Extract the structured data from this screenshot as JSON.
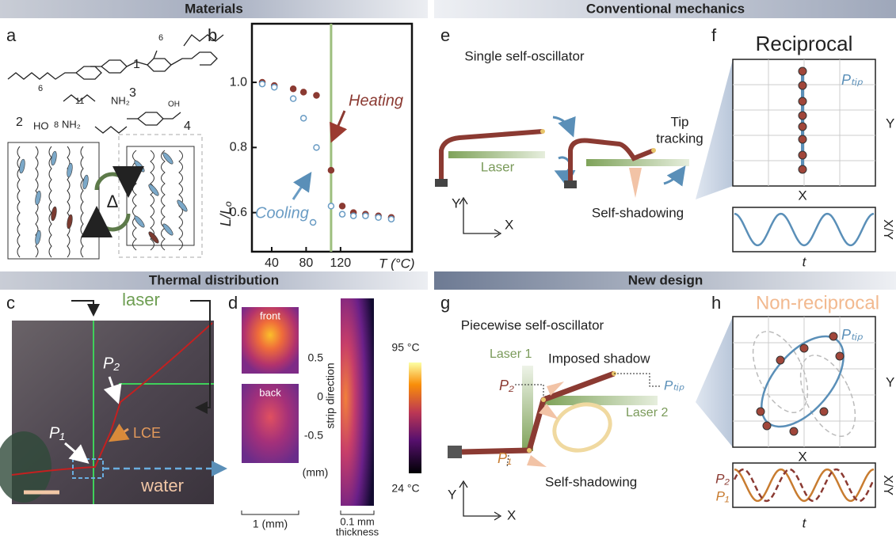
{
  "sections": {
    "materials": "Materials",
    "conventional": "Conventional mechanics",
    "thermal": "Thermal distribution",
    "new_design": "New design"
  },
  "panel_labels": [
    "a",
    "b",
    "c",
    "d",
    "e",
    "f",
    "g",
    "h"
  ],
  "panel_a": {
    "numbers": [
      "1",
      "2",
      "3",
      "4"
    ],
    "spacers": [
      "6",
      "6",
      "11",
      "8"
    ],
    "groups": [
      "NH₂",
      "HO",
      "NH₂",
      "OH"
    ],
    "delta": "Δ"
  },
  "chart_data": {
    "type": "scatter",
    "y_label": "L/Lₒ",
    "x_label": "T (°C)",
    "xlim": [
      17,
      203
    ],
    "ylim": [
      0.48,
      1.18
    ],
    "xticks": [
      40,
      80,
      120
    ],
    "yticks": [
      0.6,
      0.8,
      {
        "value": 1,
        "label": "1.0"
      }
    ],
    "vline": 109,
    "vline_color": "#9dbf7e",
    "series": [
      {
        "name": "Heating",
        "color": "#8b3a32",
        "x": [
          29,
          43,
          65,
          77,
          92,
          109,
          122,
          135,
          149,
          164,
          179
        ],
        "values": [
          1.0,
          0.99,
          0.98,
          0.97,
          0.96,
          0.73,
          0.62,
          0.6,
          0.595,
          0.59,
          0.585
        ]
      },
      {
        "name": "Cooling",
        "color": "#6a9cc4",
        "x": [
          29,
          43,
          65,
          77,
          88,
          92,
          109,
          122,
          135,
          149,
          164,
          179
        ],
        "values": [
          0.995,
          0.985,
          0.95,
          0.89,
          0.57,
          0.8,
          0.62,
          0.595,
          0.59,
          0.59,
          0.585,
          0.58
        ]
      }
    ]
  },
  "panel_c": {
    "laser": "laser",
    "p1": "P₁",
    "p2": "P₂",
    "lce": "LCE",
    "water": "water"
  },
  "panel_d": {
    "front": "front",
    "back": "back",
    "width": "1 (mm)",
    "ticks": [
      "0.5",
      "0",
      "-0.5"
    ],
    "axis": "strip direction",
    "unit": "(mm)",
    "max": "95 °C",
    "min": "24 °C",
    "thickness_value": "0.1 mm",
    "thickness": "thickness"
  },
  "panel_e": {
    "title": "Single self-oscillator",
    "laser": "Laser",
    "tip1": "Tip",
    "tip2": "tracking",
    "shadow": "Self-shadowing",
    "y": "Y",
    "x": "X"
  },
  "panel_f": {
    "title": "Reciprocal",
    "ptip": "Pₜᵢₚ",
    "y": "Y",
    "x": "X",
    "xy": "X/Y",
    "t": "t"
  },
  "panel_g": {
    "title": "Piecewise self-oscillator",
    "laser1": "Laser 1",
    "imposed": "Imposed shadow",
    "p2": "P₂",
    "ptip": "Pₜᵢₚ",
    "laser2": "Laser 2",
    "p1": "P₁",
    "shadow": "Self-shadowing",
    "y": "Y",
    "x": "X"
  },
  "panel_h": {
    "title": "Non-reciprocal",
    "ptip": "Pₜᵢₚ",
    "y": "Y",
    "x": "X",
    "p2": "P₂",
    "p1": "P₁",
    "xy": "X/Y",
    "t": "t"
  }
}
